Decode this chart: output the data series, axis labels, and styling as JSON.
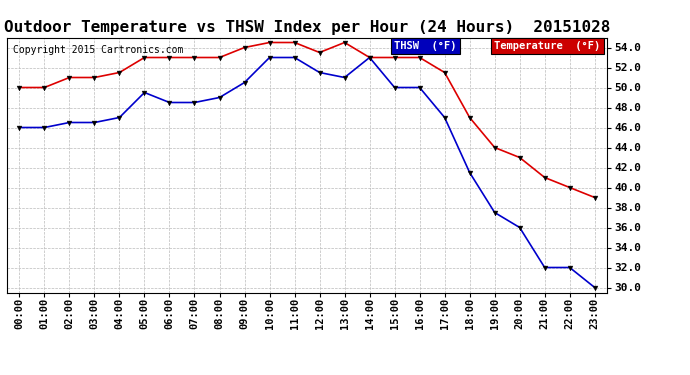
{
  "title": "Outdoor Temperature vs THSW Index per Hour (24 Hours)  20151028",
  "copyright": "Copyright 2015 Cartronics.com",
  "hours": [
    "00:00",
    "01:00",
    "02:00",
    "03:00",
    "04:00",
    "05:00",
    "06:00",
    "07:00",
    "08:00",
    "09:00",
    "10:00",
    "11:00",
    "12:00",
    "13:00",
    "14:00",
    "15:00",
    "16:00",
    "17:00",
    "18:00",
    "19:00",
    "20:00",
    "21:00",
    "22:00",
    "23:00"
  ],
  "temperature": [
    50.0,
    50.0,
    51.0,
    51.0,
    51.5,
    53.0,
    53.0,
    53.0,
    53.0,
    54.0,
    54.5,
    54.5,
    53.5,
    54.5,
    53.0,
    53.0,
    53.0,
    51.5,
    47.0,
    44.0,
    43.0,
    41.0,
    40.0,
    39.0
  ],
  "thsw": [
    46.0,
    46.0,
    46.5,
    46.5,
    47.0,
    49.5,
    48.5,
    48.5,
    49.0,
    50.5,
    53.0,
    53.0,
    51.5,
    51.0,
    53.0,
    50.0,
    50.0,
    47.0,
    41.5,
    37.5,
    36.0,
    32.0,
    32.0,
    30.0
  ],
  "ylim_min": 29.5,
  "ylim_max": 55.0,
  "yticks": [
    30.0,
    32.0,
    34.0,
    36.0,
    38.0,
    40.0,
    42.0,
    44.0,
    46.0,
    48.0,
    50.0,
    52.0,
    54.0
  ],
  "temp_color": "#dd0000",
  "thsw_color": "#0000cc",
  "bg_color": "#ffffff",
  "grid_color": "#bbbbbb",
  "legend_thsw_bg": "#0000bb",
  "legend_temp_bg": "#cc0000",
  "title_fontsize": 11.5,
  "copyright_fontsize": 7,
  "tick_fontsize": 7.5,
  "ytick_fontsize": 8
}
